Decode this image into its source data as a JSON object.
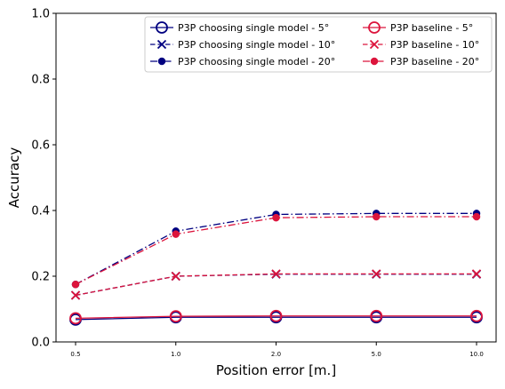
{
  "chart_data": {
    "type": "line",
    "title": "",
    "xlabel": "Position error [m.]",
    "ylabel": "Accuracy",
    "categories": [
      "0.5",
      "1.0",
      "2.0",
      "5.0",
      "10.0"
    ],
    "ylim": [
      0.0,
      1.0
    ],
    "yticks": [
      "0.0",
      "0.2",
      "0.4",
      "0.6",
      "0.8",
      "1.0"
    ],
    "grid": false,
    "legend_position": "upper-right",
    "legend_columns": 2,
    "series": [
      {
        "name": "P3P choosing single model - 5°",
        "color": "#000080",
        "linestyle": "solid",
        "marker": "open-circle",
        "values": [
          0.068,
          0.075,
          0.075,
          0.075,
          0.075
        ]
      },
      {
        "name": "P3P choosing single model - 10°",
        "color": "#000080",
        "linestyle": "dashed",
        "marker": "x",
        "values": [
          0.142,
          0.2,
          0.206,
          0.206,
          0.206
        ]
      },
      {
        "name": "P3P choosing single model - 20°",
        "color": "#000080",
        "linestyle": "dash-dot",
        "marker": "filled-circle",
        "values": [
          0.175,
          0.337,
          0.388,
          0.391,
          0.391
        ]
      },
      {
        "name": "P3P baseline - 5°",
        "color": "#dc143c",
        "linestyle": "solid",
        "marker": "open-circle",
        "values": [
          0.072,
          0.078,
          0.079,
          0.079,
          0.079
        ]
      },
      {
        "name": "P3P baseline - 10°",
        "color": "#dc143c",
        "linestyle": "dashed",
        "marker": "x",
        "values": [
          0.142,
          0.2,
          0.207,
          0.207,
          0.207
        ]
      },
      {
        "name": "P3P baseline - 20°",
        "color": "#dc143c",
        "linestyle": "dash-dot",
        "marker": "filled-circle",
        "values": [
          0.175,
          0.328,
          0.378,
          0.381,
          0.381
        ]
      }
    ]
  }
}
